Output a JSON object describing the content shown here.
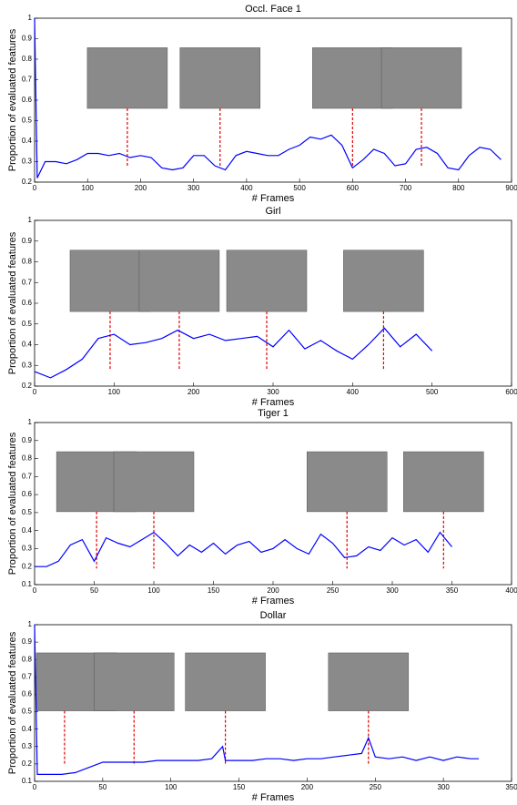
{
  "chart_data": [
    {
      "type": "line",
      "title": "Occl. Face 1",
      "xlabel": "# Frames",
      "ylabel": "Proportion of evaluated features",
      "xlim": [
        0,
        900
      ],
      "xticks": [
        0,
        100,
        200,
        300,
        400,
        500,
        600,
        700,
        800,
        900
      ],
      "ylim": [
        0.2,
        1
      ],
      "yticks": [
        0.2,
        0.3,
        0.4,
        0.5,
        0.6,
        0.7,
        0.8,
        0.9,
        1
      ],
      "markers": [
        175,
        350,
        600,
        730
      ],
      "series": [
        {
          "color": "#0000ff",
          "x": [
            0,
            5,
            20,
            40,
            60,
            80,
            100,
            120,
            140,
            160,
            180,
            200,
            220,
            240,
            260,
            280,
            300,
            320,
            340,
            360,
            380,
            400,
            420,
            440,
            460,
            480,
            500,
            520,
            540,
            560,
            580,
            600,
            620,
            640,
            660,
            680,
            700,
            720,
            740,
            760,
            780,
            800,
            820,
            840,
            860,
            880
          ],
          "values": [
            1,
            0.22,
            0.3,
            0.3,
            0.29,
            0.31,
            0.34,
            0.34,
            0.33,
            0.34,
            0.32,
            0.33,
            0.32,
            0.27,
            0.26,
            0.27,
            0.33,
            0.33,
            0.28,
            0.26,
            0.33,
            0.35,
            0.34,
            0.33,
            0.33,
            0.36,
            0.38,
            0.42,
            0.41,
            0.43,
            0.38,
            0.27,
            0.31,
            0.36,
            0.34,
            0.28,
            0.29,
            0.36,
            0.37,
            0.34,
            0.27,
            0.26,
            0.33,
            0.37,
            0.36,
            0.31
          ]
        }
      ]
    },
    {
      "type": "line",
      "title": "Girl",
      "xlabel": "# Frames",
      "ylabel": "Proportion of evaluated features",
      "xlim": [
        0,
        600
      ],
      "xticks": [
        0,
        100,
        200,
        300,
        400,
        500,
        600
      ],
      "ylim": [
        0.2,
        1
      ],
      "yticks": [
        0.2,
        0.3,
        0.4,
        0.5,
        0.6,
        0.7,
        0.8,
        0.9,
        1
      ],
      "markers": [
        95,
        182,
        292,
        439
      ],
      "series": [
        {
          "color": "#0000ff",
          "x": [
            0,
            20,
            40,
            60,
            80,
            100,
            120,
            140,
            160,
            180,
            200,
            220,
            240,
            260,
            280,
            300,
            320,
            340,
            360,
            380,
            400,
            420,
            440,
            460,
            480,
            500
          ],
          "values": [
            0.27,
            0.24,
            0.28,
            0.33,
            0.43,
            0.45,
            0.4,
            0.41,
            0.43,
            0.47,
            0.43,
            0.45,
            0.42,
            0.43,
            0.44,
            0.39,
            0.47,
            0.38,
            0.42,
            0.37,
            0.33,
            0.4,
            0.48,
            0.39,
            0.45,
            0.37
          ]
        }
      ]
    },
    {
      "type": "line",
      "title": "Tiger 1",
      "xlabel": "# Frames",
      "ylabel": "Proportion of evaluated features",
      "xlim": [
        0,
        400
      ],
      "xticks": [
        0,
        50,
        100,
        150,
        200,
        250,
        300,
        350,
        400
      ],
      "ylim": [
        0.1,
        1
      ],
      "yticks": [
        0.1,
        0.2,
        0.3,
        0.4,
        0.5,
        0.6,
        0.7,
        0.8,
        0.9,
        1
      ],
      "markers": [
        52,
        100,
        262,
        343
      ],
      "series": [
        {
          "color": "#0000ff",
          "x": [
            0,
            10,
            20,
            30,
            40,
            50,
            60,
            70,
            80,
            90,
            100,
            110,
            120,
            130,
            140,
            150,
            160,
            170,
            180,
            190,
            200,
            210,
            220,
            230,
            240,
            250,
            260,
            270,
            280,
            290,
            300,
            310,
            320,
            330,
            340,
            350
          ],
          "values": [
            0.2,
            0.2,
            0.23,
            0.32,
            0.35,
            0.23,
            0.36,
            0.33,
            0.31,
            0.35,
            0.39,
            0.33,
            0.26,
            0.32,
            0.28,
            0.33,
            0.27,
            0.32,
            0.34,
            0.28,
            0.3,
            0.35,
            0.3,
            0.27,
            0.38,
            0.33,
            0.25,
            0.26,
            0.31,
            0.29,
            0.36,
            0.32,
            0.35,
            0.28,
            0.39,
            0.31
          ]
        }
      ]
    },
    {
      "type": "line",
      "title": "Dollar",
      "xlabel": "# Frames",
      "ylabel": "Proportion of evaluated features",
      "xlim": [
        0,
        350
      ],
      "xticks": [
        0,
        50,
        100,
        150,
        200,
        250,
        300,
        350
      ],
      "ylim": [
        0.1,
        1
      ],
      "yticks": [
        0.1,
        0.2,
        0.3,
        0.4,
        0.5,
        0.6,
        0.7,
        0.8,
        0.9,
        1
      ],
      "markers": [
        22,
        73,
        140,
        245
      ],
      "series": [
        {
          "color": "#0000ff",
          "x": [
            0,
            2,
            10,
            20,
            30,
            40,
            50,
            60,
            70,
            80,
            90,
            100,
            110,
            120,
            130,
            138,
            140,
            150,
            160,
            170,
            180,
            190,
            200,
            210,
            220,
            230,
            240,
            245,
            250,
            260,
            270,
            280,
            290,
            300,
            310,
            320,
            326
          ],
          "values": [
            1,
            0.14,
            0.14,
            0.14,
            0.15,
            0.18,
            0.21,
            0.21,
            0.21,
            0.21,
            0.22,
            0.22,
            0.22,
            0.22,
            0.23,
            0.3,
            0.22,
            0.22,
            0.22,
            0.23,
            0.23,
            0.22,
            0.23,
            0.23,
            0.24,
            0.25,
            0.26,
            0.35,
            0.24,
            0.23,
            0.24,
            0.22,
            0.24,
            0.22,
            0.24,
            0.23,
            0.23
          ]
        }
      ]
    }
  ]
}
